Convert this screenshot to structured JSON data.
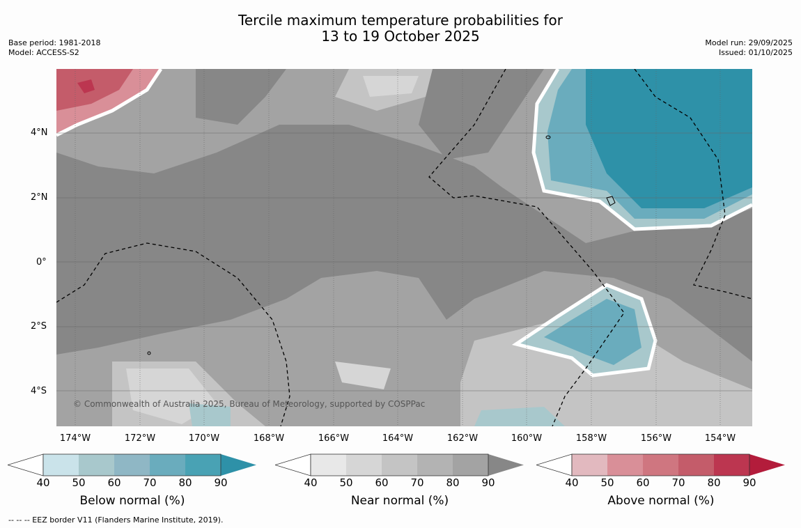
{
  "title": {
    "line1": "Tercile maximum temperature probabilities for",
    "line2": "13 to 19 October 2025"
  },
  "meta_left": {
    "base_period": "Base period: 1981-2018",
    "model": "Model: ACCESS-S2"
  },
  "meta_right": {
    "model_run": "Model run: 29/09/2025",
    "issued": "Issued: 01/10/2025"
  },
  "lat_labels": [
    "4°N",
    "2°N",
    "0°",
    "2°S",
    "4°S"
  ],
  "lon_labels": [
    "174°W",
    "172°W",
    "170°W",
    "168°W",
    "166°W",
    "164°W",
    "162°W",
    "160°W",
    "158°W",
    "156°W",
    "154°W"
  ],
  "copyright": "© Commonwealth of Australia 2025, Bureau of Meteorology, supported by COSPPac",
  "colorbars": [
    {
      "label": "Below normal (%)",
      "ticks": [
        "40",
        "50",
        "60",
        "70",
        "80",
        "90"
      ],
      "colors": [
        "#cae3ea",
        "#a8c8cc",
        "#8fb7c5",
        "#6aacbd",
        "#49a2b4",
        "#2e91a8"
      ]
    },
    {
      "label": "Near normal (%)",
      "ticks": [
        "40",
        "50",
        "60",
        "70",
        "80",
        "90"
      ],
      "colors": [
        "#e8e8e8",
        "#d6d6d6",
        "#c4c4c4",
        "#b3b3b3",
        "#a3a3a3",
        "#878787"
      ]
    },
    {
      "label": "Above normal (%)",
      "ticks": [
        "40",
        "50",
        "60",
        "70",
        "80",
        "90"
      ],
      "colors": [
        "#e2b9bf",
        "#d98f98",
        "#cf7680",
        "#c45c6a",
        "#bc3650",
        "#b31c3b"
      ]
    }
  ],
  "footnote": "--  --  -- EEZ border V11 (Flanders Marine Institute, 2019).",
  "colors": {
    "near_dark": "#878787",
    "near_mid": "#a3a3a3",
    "near_light": "#c4c4c4",
    "near_lightest": "#d6d6d6",
    "below_light": "#a8c8cc",
    "below_mid": "#6aacbd",
    "below_dark": "#2e91a8",
    "above_light": "#d98f98",
    "above_mid": "#c45c6a",
    "above_dark": "#bc3650"
  }
}
